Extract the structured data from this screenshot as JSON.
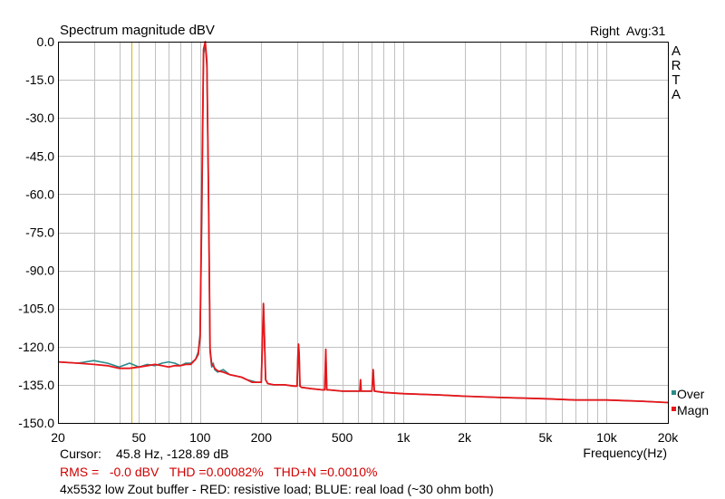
{
  "title": "Spectrum magnitude dBV",
  "channel_label": "Right",
  "avg_label": "Avg:31",
  "brand_letters": [
    "A",
    "R",
    "T",
    "A"
  ],
  "legend": [
    {
      "name": "Over",
      "color": "#2a8a8a"
    },
    {
      "name": "Magn",
      "color": "#e8161a"
    }
  ],
  "x_axis_label": "Frequency(Hz)",
  "cursor": {
    "label": "Cursor:",
    "value": "45.8 Hz, -128.89 dB"
  },
  "stats_line": "RMS =   -0.0 dBV   THD =0.00082%   THD+N =0.0010%",
  "caption": "4x5532 low Zout buffer - RED: resistive load; BLUE: real load (~30 ohm both)",
  "colors": {
    "red": "#e8161a",
    "teal": "#2a8a8a",
    "cursor": "#d4b800",
    "grid": "#c0c0c0",
    "stats_text": "#d00000"
  },
  "chart_data": {
    "type": "line",
    "title": "Spectrum magnitude dBV",
    "xlabel": "Frequency(Hz)",
    "ylabel": "",
    "xscale": "log",
    "xlim": [
      20,
      20000
    ],
    "ylim": [
      -150,
      0
    ],
    "grid": true,
    "legend_position": "right-bottom",
    "x_ticks": [
      20,
      50,
      100,
      200,
      500,
      1000,
      2000,
      5000,
      10000,
      20000
    ],
    "x_tick_labels": [
      "20",
      "50",
      "100",
      "200",
      "500",
      "1k",
      "2k",
      "5k",
      "10k",
      "20k"
    ],
    "y_ticks": [
      0,
      -15,
      -30,
      -45,
      -60,
      -75,
      -90,
      -105,
      -120,
      -135,
      -150
    ],
    "y_tick_labels": [
      "0.0",
      "-15.0",
      "-30.0",
      "-45.0",
      "-60.0",
      "-75.0",
      "-90.0",
      "-105.0",
      "-120.0",
      "-135.0",
      "-150.0"
    ],
    "cursor_x": 45.8,
    "series": [
      {
        "name": "Over",
        "color": "#2a8a8a",
        "x": [
          20,
          25,
          30,
          35,
          40,
          45,
          50,
          55,
          60,
          65,
          70,
          75,
          80,
          85,
          90,
          95,
          98,
          100,
          102,
          104,
          106,
          108,
          110,
          112,
          114,
          116,
          118,
          122,
          130,
          140,
          150,
          160,
          170,
          180,
          190,
          200,
          203,
          205,
          207,
          210,
          215,
          230,
          260,
          290,
          300,
          303,
          305,
          307,
          310,
          315,
          350,
          400,
          410,
          415,
          420,
          430,
          500,
          600,
          650,
          700,
          710,
          720,
          800,
          1000,
          1500,
          2000,
          3000,
          5000,
          7000,
          10000,
          15000,
          20000
        ],
        "y": [
          -126,
          -126.5,
          -125.5,
          -126.5,
          -128,
          -126.5,
          -128,
          -127,
          -127.5,
          -126.5,
          -126,
          -126.5,
          -127.5,
          -126.5,
          -126.5,
          -125,
          -122,
          -115,
          -70,
          -5,
          -1,
          -10,
          -60,
          -122,
          -128,
          -126.5,
          -129,
          -130,
          -129,
          -131,
          -131.5,
          -132,
          -133,
          -133.5,
          -134,
          -134,
          -115,
          -103,
          -115,
          -133,
          -134.5,
          -135,
          -135,
          -135.5,
          -135.5,
          -123,
          -119,
          -123,
          -135.5,
          -136,
          -136.5,
          -137,
          -137,
          -122,
          -137,
          -137,
          -137.5,
          -137.5,
          -137.5,
          -137.5,
          -130,
          -137.5,
          -138,
          -138.5,
          -139,
          -139.5,
          -140,
          -140.5,
          -141,
          -141,
          -141.5,
          -142
        ]
      },
      {
        "name": "Magn",
        "color": "#e8161a",
        "x": [
          20,
          25,
          30,
          35,
          40,
          45,
          50,
          55,
          60,
          65,
          70,
          75,
          80,
          85,
          90,
          95,
          98,
          100,
          102,
          104,
          106,
          108,
          110,
          112,
          114,
          116,
          118,
          122,
          130,
          140,
          150,
          160,
          170,
          180,
          190,
          200,
          203,
          205,
          207,
          210,
          215,
          230,
          260,
          290,
          300,
          303,
          305,
          307,
          310,
          315,
          350,
          400,
          410,
          415,
          420,
          430,
          500,
          600,
          610,
          615,
          620,
          630,
          650,
          700,
          710,
          720,
          800,
          1000,
          1500,
          2000,
          3000,
          5000,
          7000,
          10000,
          15000,
          20000
        ],
        "y": [
          -126,
          -126.5,
          -127,
          -127.5,
          -128.5,
          -128.5,
          -128,
          -127.5,
          -127,
          -127.5,
          -128,
          -127.5,
          -127.5,
          -127,
          -127,
          -125,
          -123,
          -116,
          -60,
          -3,
          0,
          -8,
          -60,
          -121,
          -127,
          -127.5,
          -128.5,
          -129.5,
          -130,
          -131,
          -131.5,
          -132,
          -133,
          -134,
          -134,
          -134,
          -115,
          -103,
          -115,
          -133,
          -134.5,
          -135,
          -135,
          -135.5,
          -135.5,
          -123,
          -119,
          -123,
          -135.5,
          -136,
          -136.5,
          -137,
          -137,
          -121,
          -137,
          -137,
          -137.5,
          -137.5,
          -137.5,
          -133,
          -137.5,
          -137.5,
          -137.5,
          -137.5,
          -129,
          -137.5,
          -138,
          -138.5,
          -139,
          -139.5,
          -140,
          -140.5,
          -141,
          -141,
          -141.5,
          -142
        ]
      }
    ]
  }
}
